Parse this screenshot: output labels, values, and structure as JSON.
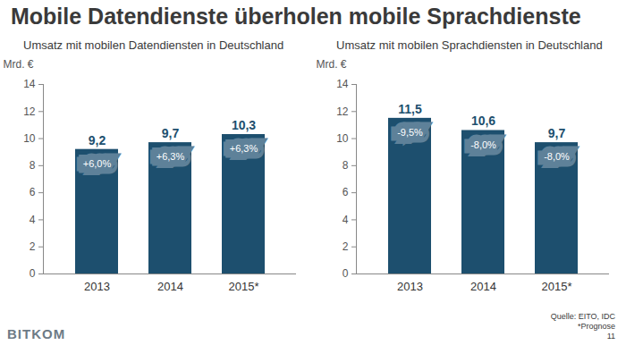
{
  "title": "Mobile Datendienste überholen mobile Sprachdienste",
  "source": "Quelle: EITO, IDC",
  "footnote": "*Prognose",
  "page": "11",
  "logo": "BITKOM",
  "chart_data": [
    {
      "type": "bar",
      "title": "Umsatz mit mobilen Datendiensten in Deutschland",
      "categories": [
        "2013",
        "2014",
        "2015*"
      ],
      "values": [
        9.2,
        9.7,
        10.3
      ],
      "value_labels": [
        "9,2",
        "9,7",
        "10,3"
      ],
      "change": [
        6.0,
        6.3,
        6.3
      ],
      "change_labels": [
        "+6,0%",
        "+6,3%",
        "+6,3%"
      ],
      "color": "#1d4f6e",
      "y_label": "Mrd. €",
      "ylim": [
        0,
        14
      ],
      "yticks": [
        0,
        2,
        4,
        6,
        8,
        10,
        12,
        14
      ],
      "grid": false,
      "data_labels": true
    },
    {
      "type": "bar",
      "title": "Umsatz mit mobilen Sprachdiensten in Deutschland",
      "categories": [
        "2013",
        "2014",
        "2015*"
      ],
      "values": [
        11.5,
        10.6,
        9.7
      ],
      "value_labels": [
        "11,5",
        "10,6",
        "9,7"
      ],
      "change": [
        -9.5,
        -8.0,
        -8.0
      ],
      "change_labels": [
        "-9,5%",
        "-8,0%",
        "-8,0%"
      ],
      "color": "#1d4f6e",
      "y_label": "Mrd. €",
      "ylim": [
        0,
        14
      ],
      "yticks": [
        0,
        2,
        4,
        6,
        8,
        10,
        12,
        14
      ],
      "grid": false,
      "data_labels": true
    }
  ]
}
